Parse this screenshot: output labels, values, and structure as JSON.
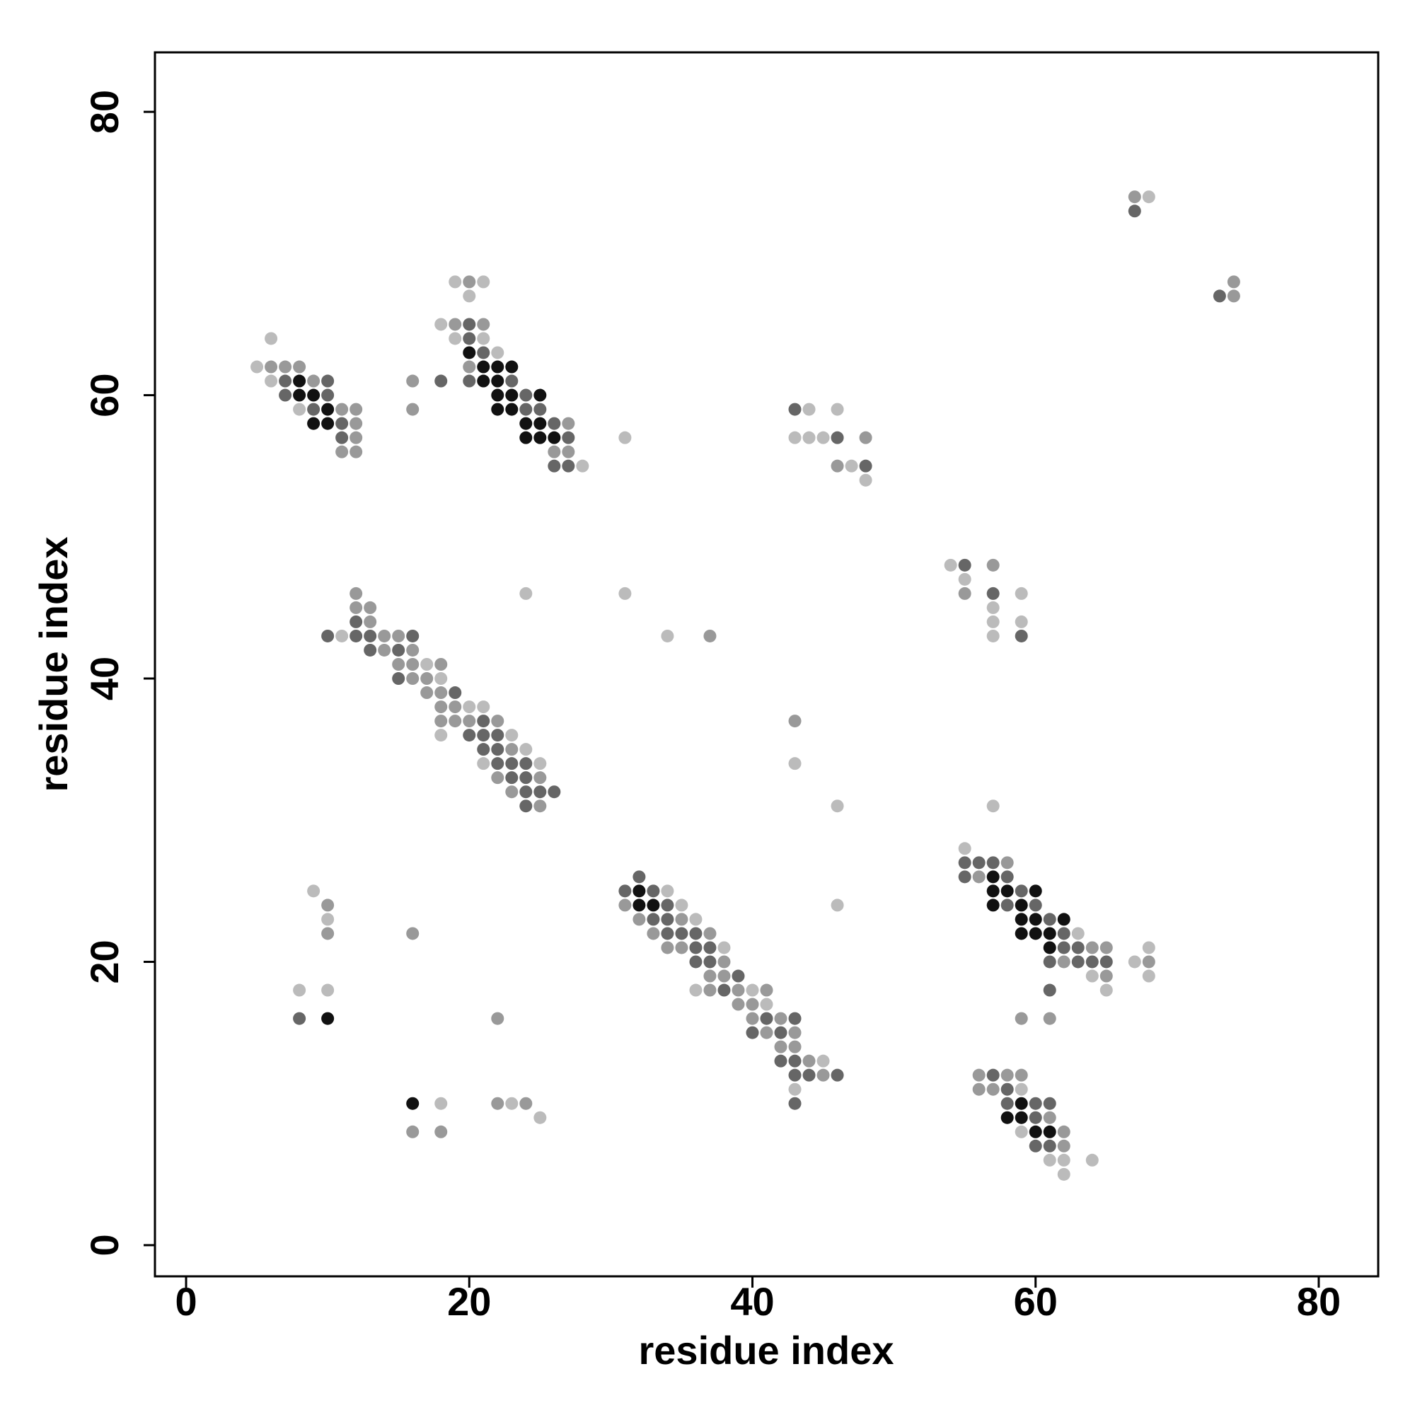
{
  "chart_data": {
    "type": "scatter",
    "xlabel": "residue index",
    "ylabel": "residue index",
    "xlim": [
      -2.2,
      84.2
    ],
    "ylim": [
      -2.2,
      84.2
    ],
    "xticks": [
      0,
      20,
      40,
      60,
      80
    ],
    "yticks": [
      0,
      20,
      40,
      60,
      80
    ],
    "grid": false,
    "series": [
      {
        "color": "#111111",
        "x": [
          8,
          8,
          9,
          10,
          9,
          10,
          20,
          21,
          22,
          23,
          21,
          22,
          22,
          23,
          25,
          22,
          23,
          24,
          25,
          24,
          25,
          26,
          32,
          32,
          33,
          10,
          16,
          57,
          57,
          58,
          60,
          57,
          59,
          59,
          60,
          62,
          59,
          60,
          61,
          61,
          59,
          58,
          59,
          60,
          61
        ],
        "values": [
          61,
          60,
          60,
          59,
          58,
          58,
          63,
          62,
          62,
          62,
          61,
          61,
          60,
          60,
          60,
          59,
          59,
          58,
          58,
          57,
          57,
          57,
          25,
          24,
          24,
          16,
          10,
          26,
          25,
          25,
          25,
          24,
          24,
          23,
          23,
          23,
          22,
          22,
          22,
          21,
          10,
          9,
          9,
          8,
          8
        ]
      },
      {
        "color": "#666666",
        "x": [
          7,
          10,
          7,
          10,
          9,
          11,
          11,
          20,
          20,
          21,
          18,
          20,
          23,
          24,
          24,
          25,
          26,
          27,
          26,
          27,
          43,
          46,
          48,
          67,
          73,
          12,
          10,
          12,
          13,
          16,
          13,
          15,
          15,
          19,
          21,
          20,
          21,
          22,
          21,
          22,
          22,
          23,
          24,
          23,
          24,
          24,
          25,
          26,
          24,
          55,
          57,
          59,
          32,
          31,
          33,
          34,
          33,
          34,
          34,
          35,
          36,
          36,
          37,
          36,
          37,
          39,
          38,
          41,
          43,
          40,
          42,
          42,
          43,
          43,
          44,
          46,
          43,
          8,
          55,
          56,
          57,
          55,
          58,
          59,
          58,
          60,
          61,
          62,
          62,
          63,
          61,
          63,
          64,
          65,
          61,
          57,
          58,
          58,
          60,
          61,
          60,
          60,
          61
        ],
        "values": [
          61,
          61,
          60,
          60,
          59,
          58,
          57,
          65,
          64,
          63,
          61,
          61,
          61,
          60,
          59,
          59,
          58,
          57,
          55,
          55,
          59,
          57,
          55,
          73,
          67,
          44,
          43,
          43,
          43,
          43,
          42,
          42,
          40,
          39,
          37,
          36,
          36,
          36,
          35,
          35,
          34,
          34,
          34,
          33,
          33,
          32,
          32,
          32,
          31,
          48,
          46,
          43,
          26,
          25,
          25,
          24,
          23,
          23,
          22,
          22,
          22,
          21,
          21,
          20,
          20,
          19,
          18,
          16,
          16,
          15,
          15,
          13,
          13,
          12,
          12,
          12,
          10,
          16,
          27,
          27,
          27,
          26,
          26,
          25,
          24,
          24,
          23,
          22,
          21,
          21,
          20,
          20,
          20,
          20,
          18,
          12,
          11,
          10,
          10,
          10,
          9,
          7,
          7
        ]
      },
      {
        "color": "#999999",
        "x": [
          6,
          7,
          8,
          9,
          11,
          12,
          12,
          12,
          11,
          12,
          16,
          16,
          20,
          19,
          21,
          20,
          27,
          26,
          27,
          48,
          46,
          67,
          74,
          74,
          12,
          12,
          13,
          13,
          14,
          15,
          37,
          14,
          16,
          15,
          16,
          18,
          16,
          17,
          17,
          18,
          18,
          19,
          18,
          19,
          20,
          22,
          23,
          22,
          25,
          23,
          25,
          43,
          57,
          55,
          31,
          32,
          35,
          33,
          37,
          34,
          35,
          38,
          37,
          38,
          37,
          39,
          41,
          39,
          40,
          40,
          42,
          41,
          43,
          42,
          43,
          44,
          45,
          10,
          10,
          16,
          22,
          22,
          24,
          16,
          18,
          58,
          56,
          64,
          65,
          62,
          68,
          65,
          59,
          61,
          56,
          58,
          59,
          56,
          57,
          61,
          62,
          62
        ],
        "values": [
          62,
          62,
          62,
          61,
          59,
          59,
          58,
          57,
          56,
          56,
          61,
          59,
          68,
          65,
          65,
          62,
          58,
          56,
          56,
          57,
          55,
          74,
          68,
          67,
          46,
          45,
          45,
          44,
          43,
          43,
          43,
          42,
          42,
          41,
          41,
          41,
          40,
          40,
          39,
          39,
          38,
          38,
          37,
          37,
          37,
          37,
          35,
          33,
          33,
          32,
          31,
          37,
          48,
          46,
          24,
          23,
          23,
          22,
          22,
          21,
          21,
          20,
          19,
          19,
          18,
          18,
          18,
          17,
          17,
          16,
          16,
          15,
          15,
          14,
          14,
          13,
          12,
          24,
          22,
          22,
          16,
          10,
          10,
          8,
          8,
          27,
          26,
          21,
          21,
          20,
          20,
          19,
          16,
          16,
          12,
          12,
          12,
          11,
          11,
          9,
          8,
          7
        ]
      },
      {
        "color": "#bbbbbb",
        "x": [
          6,
          5,
          6,
          8,
          19,
          21,
          20,
          18,
          19,
          21,
          22,
          28,
          31,
          44,
          46,
          43,
          44,
          45,
          47,
          48,
          68,
          24,
          31,
          11,
          34,
          17,
          18,
          20,
          21,
          18,
          23,
          24,
          21,
          25,
          43,
          46,
          57,
          46,
          54,
          55,
          59,
          57,
          57,
          59,
          57,
          34,
          35,
          36,
          38,
          36,
          40,
          41,
          45,
          43,
          9,
          10,
          8,
          10,
          18,
          23,
          25,
          55,
          63,
          67,
          64,
          68,
          65,
          68,
          59,
          59,
          61,
          62,
          64,
          62
        ],
        "values": [
          64,
          62,
          61,
          59,
          68,
          68,
          67,
          65,
          64,
          64,
          63,
          55,
          57,
          59,
          59,
          57,
          57,
          57,
          55,
          54,
          74,
          46,
          46,
          43,
          43,
          41,
          40,
          38,
          38,
          36,
          36,
          35,
          34,
          34,
          34,
          31,
          31,
          24,
          48,
          47,
          46,
          45,
          44,
          44,
          43,
          25,
          24,
          23,
          21,
          18,
          18,
          17,
          13,
          11,
          25,
          23,
          18,
          18,
          10,
          10,
          9,
          28,
          22,
          20,
          19,
          19,
          18,
          21,
          11,
          8,
          6,
          6,
          6,
          5
        ]
      }
    ]
  }
}
